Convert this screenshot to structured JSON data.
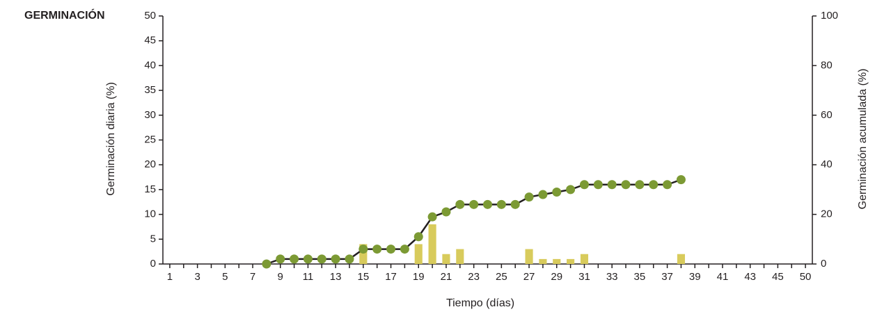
{
  "chart_data": {
    "type": "bar_line",
    "title": "GERMINACIÓN",
    "x_label": "Tiempo (días)",
    "y_label": "Germinación diaria (%)",
    "y2_label": "Germinación acumulada (%)",
    "categories": [
      "1",
      null,
      "3",
      null,
      "5",
      null,
      "7",
      null,
      "9",
      null,
      "11",
      null,
      "13",
      null,
      "15",
      null,
      "17",
      null,
      "19",
      null,
      "21",
      null,
      "23",
      null,
      "25",
      null,
      "27",
      null,
      "29",
      null,
      "31",
      null,
      "33",
      null,
      "35",
      null,
      "37",
      null,
      "39",
      null,
      "41",
      null,
      "43",
      null,
      "45",
      null,
      "50"
    ],
    "ylim": [
      0,
      50
    ],
    "yticks": [
      0,
      5,
      10,
      15,
      20,
      25,
      30,
      35,
      40,
      45,
      50
    ],
    "y2lim": [
      0,
      100
    ],
    "y2ticks": [
      0,
      20,
      40,
      60,
      80,
      100
    ],
    "series": [
      {
        "name": "Germinación diaria",
        "type": "bar",
        "color": "#d8cb5c",
        "values": [
          null,
          null,
          null,
          null,
          null,
          null,
          null,
          null,
          null,
          null,
          null,
          null,
          null,
          null,
          4,
          null,
          null,
          null,
          4,
          8,
          2,
          3,
          null,
          null,
          null,
          null,
          3,
          1,
          1,
          1,
          2,
          null,
          null,
          null,
          null,
          null,
          null,
          2,
          null,
          null,
          null,
          null,
          null,
          null,
          null,
          null,
          null
        ]
      },
      {
        "name": "Germinación acumulada",
        "type": "line",
        "axis": "y2",
        "color": "#7c9a34",
        "line_color": "#231f20",
        "values": [
          null,
          null,
          null,
          null,
          null,
          null,
          null,
          0,
          2,
          2,
          2,
          2,
          2,
          2,
          6,
          6,
          6,
          6,
          11,
          19,
          21,
          24,
          24,
          24,
          24,
          24,
          27,
          28,
          29,
          30,
          32,
          32,
          32,
          32,
          32,
          32,
          32,
          34,
          null,
          null,
          null,
          null,
          null,
          null,
          null,
          null,
          null
        ]
      }
    ]
  }
}
